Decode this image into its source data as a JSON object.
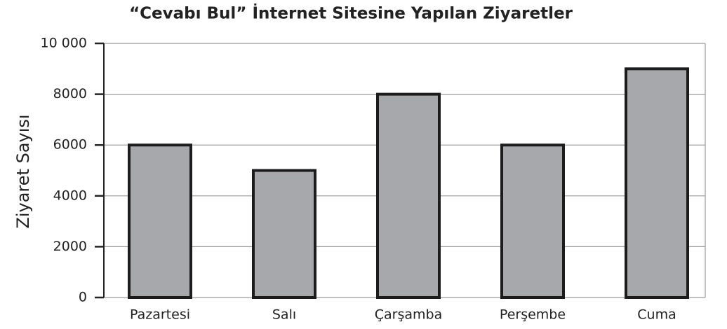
{
  "chart_data": {
    "type": "bar",
    "title": "“Cevabı Bul” İnternet Sitesine Yapılan Ziyaretler",
    "y_label": "Ziyaret Sayısı",
    "categories": [
      "Pazartesi",
      "Salı",
      "Çarşamba",
      "Perşembe",
      "Cuma"
    ],
    "values": [
      6000,
      5000,
      8000,
      6000,
      9000
    ],
    "color": "#a7a8ab",
    "ylim": [
      0,
      10000
    ],
    "yticks": [
      0,
      2000,
      4000,
      6000,
      8000,
      {
        "value": 10000,
        "label": "10 000"
      }
    ],
    "grid": true
  }
}
